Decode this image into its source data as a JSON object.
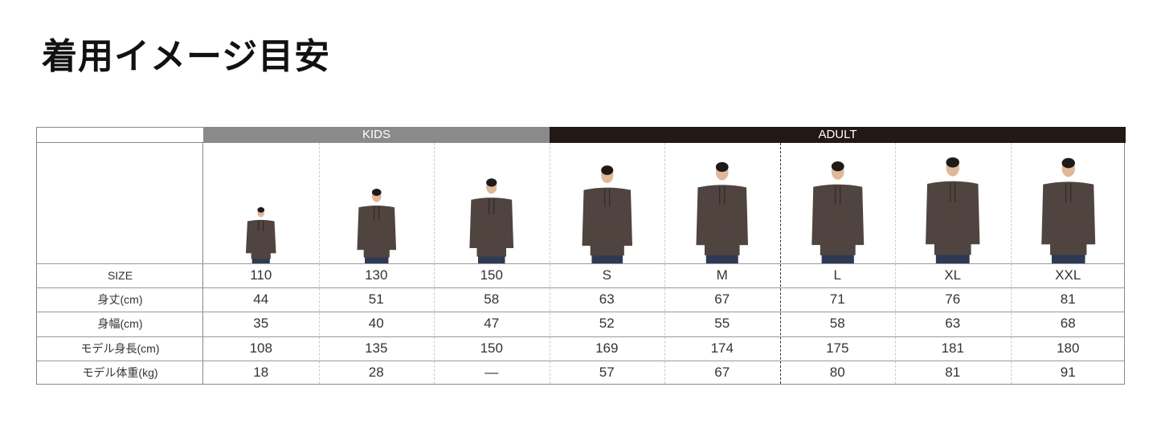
{
  "title": "着用イメージ目安",
  "groups": {
    "kids": "KIDS",
    "adult": "ADULT"
  },
  "row_labels": [
    "SIZE",
    "身丈(cm)",
    "身幅(cm)",
    "モデル身長(cm)",
    "モデル体重(kg)"
  ],
  "columns": [
    {
      "size": "110",
      "length": "44",
      "width": "35",
      "model_height": "108",
      "model_weight": "18"
    },
    {
      "size": "130",
      "length": "51",
      "width": "40",
      "model_height": "135",
      "model_weight": "28"
    },
    {
      "size": "150",
      "length": "58",
      "width": "47",
      "model_height": "150",
      "model_weight": "—"
    },
    {
      "size": "S",
      "length": "63",
      "width": "52",
      "model_height": "169",
      "model_weight": "57"
    },
    {
      "size": "M",
      "length": "67",
      "width": "55",
      "model_height": "174",
      "model_weight": "67"
    },
    {
      "size": "L",
      "length": "71",
      "width": "58",
      "model_height": "175",
      "model_weight": "80"
    },
    {
      "size": "XL",
      "length": "76",
      "width": "63",
      "model_height": "181",
      "model_weight": "81"
    },
    {
      "size": "XXL",
      "length": "81",
      "width": "68",
      "model_height": "180",
      "model_weight": "91"
    }
  ],
  "colors": {
    "kids_header": "#8a8a8a",
    "adult_header": "#231815",
    "hoodie": "#4f443f",
    "jeans": "#2e3a55",
    "skin": "#e0b89a",
    "hair": "#1e1a18"
  }
}
